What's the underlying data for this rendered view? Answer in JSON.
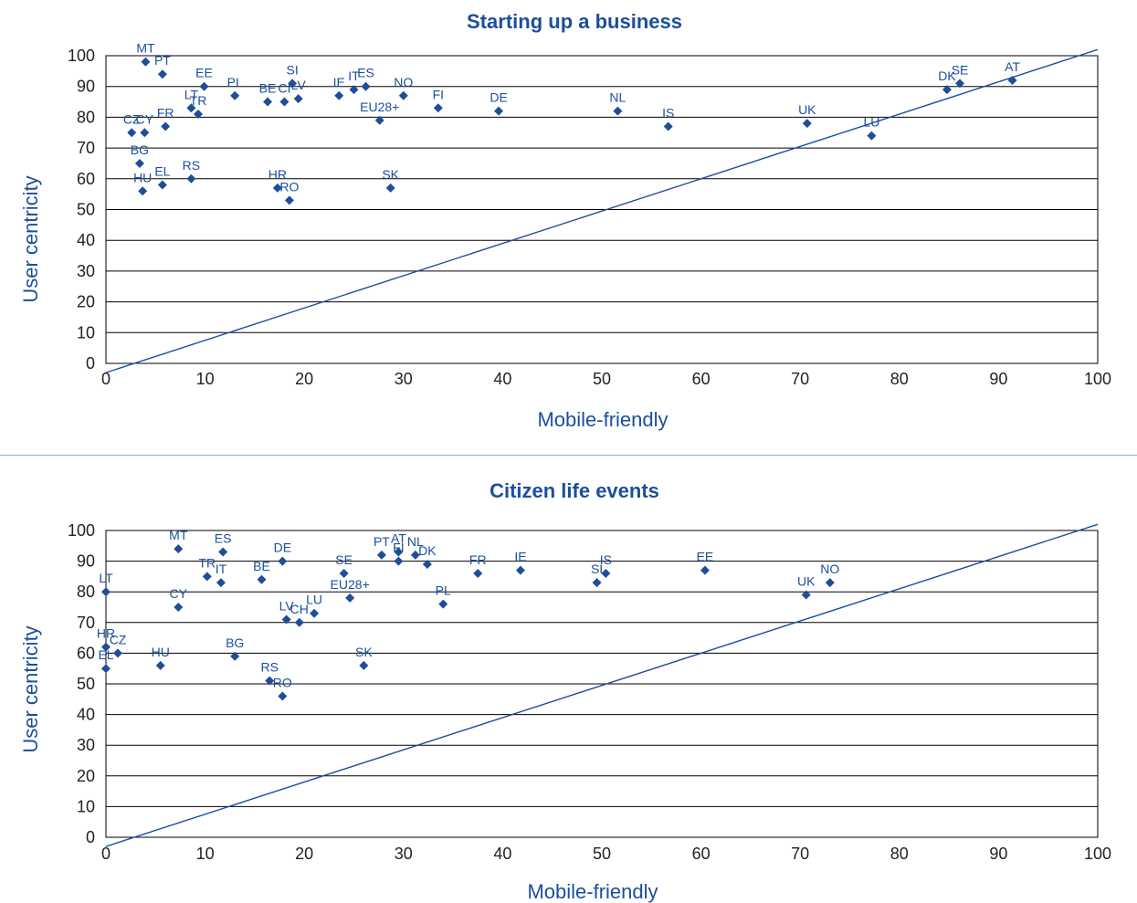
{
  "colors": {
    "accent": "#1b4f9c",
    "marker": "#1f4e96",
    "grid": "#000000",
    "divider": "#7fb7e0"
  },
  "chart_data": [
    {
      "type": "scatter",
      "title": "Starting up a business",
      "xlabel": "Mobile-friendly",
      "ylabel": "User centricity",
      "xlim": [
        0,
        100
      ],
      "ylim": [
        0,
        100
      ],
      "xticks": [
        "0",
        "10",
        "20",
        "30",
        "40",
        "50",
        "60",
        "70",
        "80",
        "90",
        "100"
      ],
      "yticks": [
        "0",
        "10",
        "20",
        "30",
        "40",
        "50",
        "60",
        "70",
        "80",
        "90",
        "100"
      ],
      "grid": "horizontal",
      "reference_line": {
        "x": [
          0,
          100
        ],
        "y": [
          -3,
          102
        ]
      },
      "points": [
        {
          "label": "MT",
          "x": 4,
          "y": 98
        },
        {
          "label": "PT",
          "x": 5.7,
          "y": 94
        },
        {
          "label": "EE",
          "x": 9.9,
          "y": 90
        },
        {
          "label": "PL",
          "x": 13,
          "y": 87
        },
        {
          "label": "BE",
          "x": 16.3,
          "y": 85
        },
        {
          "label": "CI",
          "x": 18,
          "y": 85
        },
        {
          "label": "SI",
          "x": 18.8,
          "y": 91
        },
        {
          "label": "LV",
          "x": 19.4,
          "y": 86
        },
        {
          "label": "IE",
          "x": 23.5,
          "y": 87
        },
        {
          "label": "IT",
          "x": 25,
          "y": 89
        },
        {
          "label": "ES",
          "x": 26.2,
          "y": 90
        },
        {
          "label": "NO",
          "x": 30,
          "y": 87
        },
        {
          "label": "EU28+",
          "x": 27.6,
          "y": 79
        },
        {
          "label": "FI",
          "x": 33.5,
          "y": 83
        },
        {
          "label": "DE",
          "x": 39.6,
          "y": 82
        },
        {
          "label": "NL",
          "x": 51.6,
          "y": 82
        },
        {
          "label": "IS",
          "x": 56.7,
          "y": 77
        },
        {
          "label": "UK",
          "x": 70.7,
          "y": 78
        },
        {
          "label": "LU",
          "x": 77.2,
          "y": 74
        },
        {
          "label": "DK",
          "x": 84.8,
          "y": 89
        },
        {
          "label": "SE",
          "x": 86.1,
          "y": 91
        },
        {
          "label": "AT",
          "x": 91.4,
          "y": 92
        },
        {
          "label": "LT",
          "x": 8.6,
          "y": 83
        },
        {
          "label": "TR",
          "x": 9.3,
          "y": 81
        },
        {
          "label": "FR",
          "x": 6,
          "y": 77
        },
        {
          "label": "CZ",
          "x": 2.6,
          "y": 75
        },
        {
          "label": "CY",
          "x": 3.9,
          "y": 75
        },
        {
          "label": "BG",
          "x": 3.4,
          "y": 65
        },
        {
          "label": "HU",
          "x": 3.7,
          "y": 56
        },
        {
          "label": "EL",
          "x": 5.7,
          "y": 58
        },
        {
          "label": "RS",
          "x": 8.6,
          "y": 60
        },
        {
          "label": "HR",
          "x": 17.3,
          "y": 57
        },
        {
          "label": "RO",
          "x": 18.5,
          "y": 53
        },
        {
          "label": "SK",
          "x": 28.7,
          "y": 57
        }
      ]
    },
    {
      "type": "scatter",
      "title": "Citizen life events",
      "xlabel": "Mobile-friendly",
      "ylabel": "User centricity",
      "xlim": [
        0,
        100
      ],
      "ylim": [
        0,
        100
      ],
      "xticks": [
        "0",
        "10",
        "20",
        "30",
        "40",
        "50",
        "60",
        "70",
        "80",
        "90",
        "100"
      ],
      "yticks": [
        "0",
        "10",
        "20",
        "30",
        "40",
        "50",
        "60",
        "70",
        "80",
        "90",
        "100"
      ],
      "grid": "horizontal",
      "reference_line": {
        "x": [
          0,
          100
        ],
        "y": [
          -3,
          102
        ]
      },
      "points": [
        {
          "label": "MT",
          "x": 7.3,
          "y": 94
        },
        {
          "label": "ES",
          "x": 11.8,
          "y": 93
        },
        {
          "label": "DE",
          "x": 17.8,
          "y": 90
        },
        {
          "label": "TR",
          "x": 10.2,
          "y": 85
        },
        {
          "label": "IT",
          "x": 11.6,
          "y": 83
        },
        {
          "label": "BE",
          "x": 15.7,
          "y": 84
        },
        {
          "label": "LT",
          "x": 0,
          "y": 80
        },
        {
          "label": "CY",
          "x": 7.3,
          "y": 75
        },
        {
          "label": "SE",
          "x": 24,
          "y": 86
        },
        {
          "label": "EU28+",
          "x": 24.6,
          "y": 78
        },
        {
          "label": "PT",
          "x": 27.8,
          "y": 92
        },
        {
          "label": "AT",
          "x": 29.5,
          "y": 93
        },
        {
          "label": "FI",
          "x": 29.5,
          "y": 90
        },
        {
          "label": "NL",
          "x": 31.2,
          "y": 92
        },
        {
          "label": "DK",
          "x": 32.4,
          "y": 89
        },
        {
          "label": "FR",
          "x": 37.5,
          "y": 86
        },
        {
          "label": "IE",
          "x": 41.8,
          "y": 87
        },
        {
          "label": "PL",
          "x": 34,
          "y": 76
        },
        {
          "label": "LV",
          "x": 18.2,
          "y": 71
        },
        {
          "label": "CH",
          "x": 19.5,
          "y": 70
        },
        {
          "label": "LU",
          "x": 21,
          "y": 73
        },
        {
          "label": "SI",
          "x": 49.5,
          "y": 83
        },
        {
          "label": "IS",
          "x": 50.4,
          "y": 86
        },
        {
          "label": "EE",
          "x": 60.4,
          "y": 87
        },
        {
          "label": "UK",
          "x": 70.6,
          "y": 79
        },
        {
          "label": "NO",
          "x": 73,
          "y": 83
        },
        {
          "label": "HR",
          "x": 0,
          "y": 62
        },
        {
          "label": "CZ",
          "x": 1.2,
          "y": 60
        },
        {
          "label": "EL",
          "x": 0,
          "y": 55
        },
        {
          "label": "HU",
          "x": 5.5,
          "y": 56
        },
        {
          "label": "BG",
          "x": 13,
          "y": 59
        },
        {
          "label": "RS",
          "x": 16.5,
          "y": 51
        },
        {
          "label": "RO",
          "x": 17.8,
          "y": 46
        },
        {
          "label": "SK",
          "x": 26,
          "y": 56
        }
      ]
    }
  ]
}
